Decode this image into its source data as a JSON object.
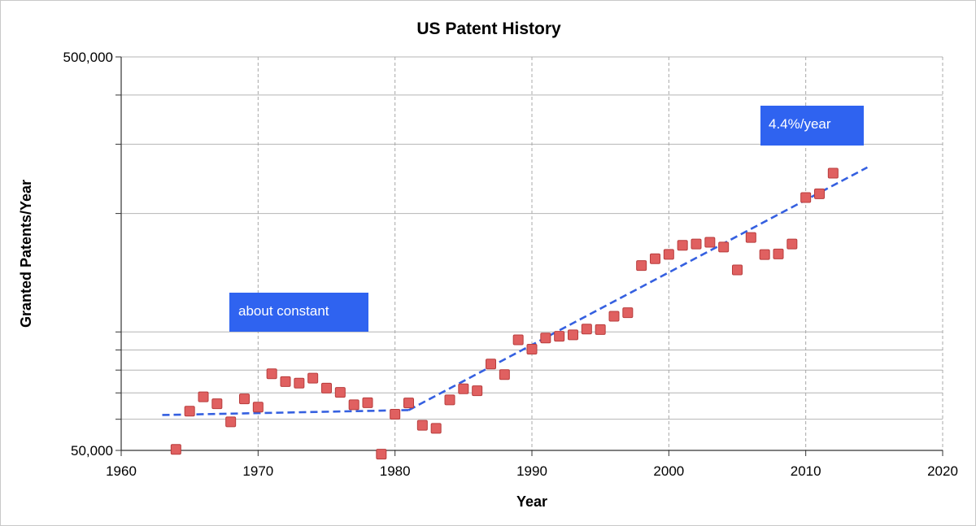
{
  "chart_data": {
    "type": "scatter",
    "title": "US Patent History",
    "xlabel": "Year",
    "ylabel": "Granted Patents/Year",
    "xlim": [
      1960,
      2020
    ],
    "ylim": [
      50000,
      500000
    ],
    "y_scale": "log",
    "grid": true,
    "x_ticks": [
      "1960",
      "1970",
      "1980",
      "1990",
      "2000",
      "2010",
      "2020"
    ],
    "y_ticks": [
      {
        "value": 50000,
        "label": "50,000"
      },
      {
        "value": 500000,
        "label": "500,000"
      }
    ],
    "colors": {
      "marker": "#e06060",
      "marker_edge": "#b83c3c",
      "trend": "#3560e0",
      "callout": "#2f63f0"
    },
    "series": [
      {
        "values": [
          [
            1964,
            50300
          ],
          [
            1965,
            62900
          ],
          [
            1966,
            68400
          ],
          [
            1967,
            65700
          ],
          [
            1968,
            59100
          ],
          [
            1969,
            67600
          ],
          [
            1970,
            64400
          ],
          [
            1971,
            78300
          ],
          [
            1972,
            74800
          ],
          [
            1973,
            74100
          ],
          [
            1974,
            76300
          ],
          [
            1975,
            72000
          ],
          [
            1976,
            70200
          ],
          [
            1977,
            65300
          ],
          [
            1978,
            66100
          ],
          [
            1979,
            48900
          ],
          [
            1980,
            61800
          ],
          [
            1981,
            66000
          ],
          [
            1982,
            57900
          ],
          [
            1983,
            56900
          ],
          [
            1984,
            67200
          ],
          [
            1985,
            71700
          ],
          [
            1986,
            70900
          ],
          [
            1987,
            82900
          ],
          [
            1988,
            77900
          ],
          [
            1989,
            95500
          ],
          [
            1990,
            90400
          ],
          [
            1991,
            96500
          ],
          [
            1992,
            97500
          ],
          [
            1993,
            98300
          ],
          [
            1994,
            101700
          ],
          [
            1995,
            101400
          ],
          [
            1996,
            109600
          ],
          [
            1997,
            111900
          ],
          [
            1998,
            147500
          ],
          [
            1999,
            153500
          ],
          [
            2000,
            157500
          ],
          [
            2001,
            166000
          ],
          [
            2002,
            167300
          ],
          [
            2003,
            169000
          ],
          [
            2004,
            164300
          ],
          [
            2005,
            143800
          ],
          [
            2006,
            173800
          ],
          [
            2007,
            157300
          ],
          [
            2008,
            157800
          ],
          [
            2009,
            167300
          ],
          [
            2010,
            219600
          ],
          [
            2011,
            224500
          ],
          [
            2012,
            253200
          ]
        ]
      }
    ],
    "trend_lines": [
      {
        "points": [
          [
            1963,
            61500
          ],
          [
            1981,
            63300
          ]
        ]
      },
      {
        "points": [
          [
            1981,
            63300
          ],
          [
            2014.5,
            262000
          ]
        ]
      }
    ],
    "annotations": [
      {
        "text": "about constant"
      },
      {
        "text": "4.4%/year"
      }
    ]
  }
}
